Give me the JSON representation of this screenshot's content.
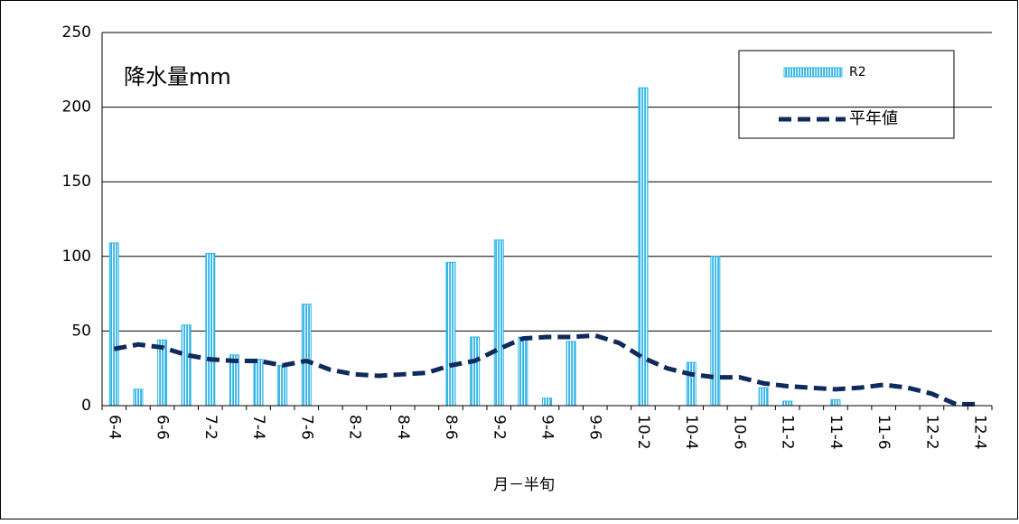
{
  "chart_data": {
    "type": "bar-line",
    "title": "降水量mm",
    "x_label": "月－半旬",
    "categories": [
      "6-4",
      null,
      "6-6",
      null,
      "7-2",
      null,
      "7-4",
      null,
      "7-6",
      null,
      "8-2",
      null,
      "8-4",
      null,
      "8-6",
      null,
      "9-2",
      null,
      "9-4",
      null,
      "9-6",
      null,
      "10-2",
      null,
      "10-4",
      null,
      "10-6",
      null,
      "11-2",
      null,
      "11-4",
      null,
      "11-6",
      null,
      "12-2",
      null,
      "12-4"
    ],
    "series": [
      {
        "name": "R2",
        "type": "bar",
        "color": "#2eb4e8",
        "values": [
          109,
          11,
          44,
          54,
          102,
          34,
          31,
          27,
          68,
          0,
          0,
          0,
          0,
          0,
          96,
          46,
          111,
          46,
          5,
          43,
          0,
          0,
          213,
          0,
          29,
          100,
          0,
          12,
          3,
          0,
          4,
          0,
          0,
          0,
          0,
          0,
          0
        ]
      },
      {
        "name": "平年値",
        "type": "line",
        "color": "#0f2a5c",
        "values": [
          38,
          41,
          39,
          34,
          31,
          30,
          30,
          27,
          30,
          24,
          21,
          20,
          21,
          22,
          27,
          30,
          38,
          45,
          46,
          46,
          47,
          42,
          32,
          25,
          21,
          19,
          19,
          15,
          13,
          12,
          11,
          12,
          14,
          12,
          8,
          1,
          1
        ]
      }
    ],
    "ylim": [
      0,
      250
    ],
    "yticks": [
      0,
      50,
      100,
      150,
      200,
      250
    ],
    "grid": true
  }
}
